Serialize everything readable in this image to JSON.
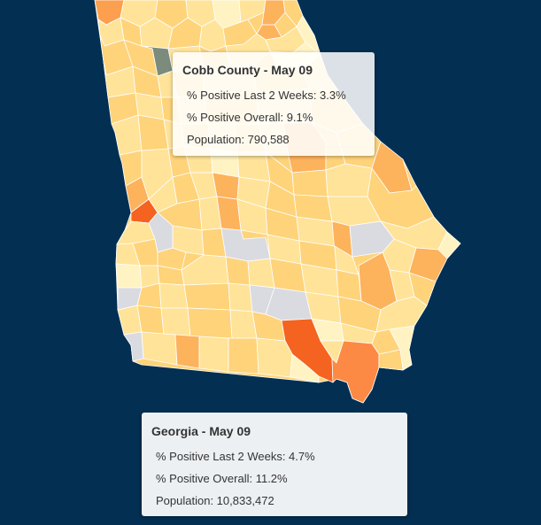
{
  "colors": {
    "background": "#032f52",
    "no_data": "#dadbe1",
    "very_low": "#fff3c3",
    "low": "#ffe399",
    "medium_low": "#fed37a",
    "medium": "#fdb25c",
    "medium_high": "#fc8a44",
    "high": "#f4631f",
    "highest": "#e84612",
    "hover": "#7c8c7c"
  },
  "county_tooltip": {
    "title": "Cobb County - May 09",
    "positive_2wk": "% Positive Last 2 Weeks: 3.3%",
    "positive_overall": "% Positive Overall: 9.1%",
    "population": "Population: 790,588"
  },
  "state_tooltip": {
    "title": "Georgia - May 09",
    "positive_2wk": "% Positive Last 2 Weeks: 4.7%",
    "positive_overall": "% Positive Overall: 11.2%",
    "population": "Population: 10,833,472"
  }
}
